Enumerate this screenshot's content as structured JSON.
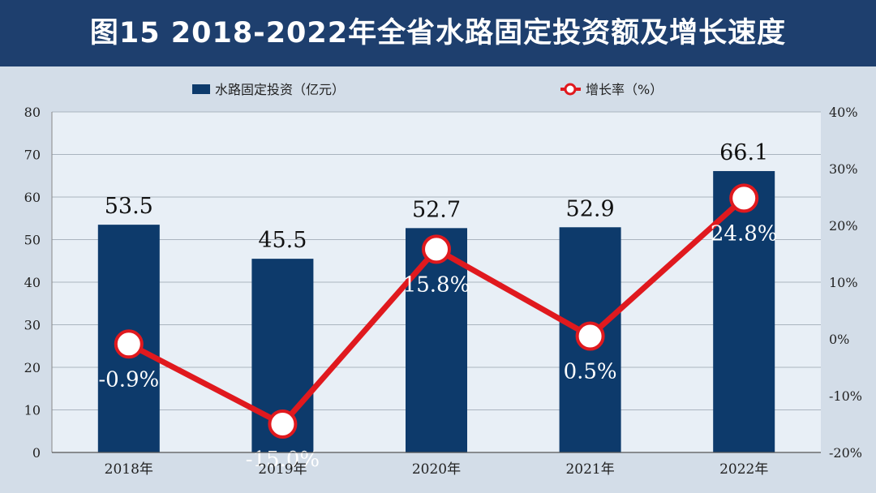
{
  "title": "图15  2018-2022年全省水路固定投资额及增长速度",
  "chart_data": {
    "type": "bar",
    "categories": [
      "2018年",
      "2019年",
      "2020年",
      "2021年",
      "2022年"
    ],
    "series": [
      {
        "name": "水路固定投资（亿元）",
        "type": "bar",
        "axis": "left",
        "values": [
          53.5,
          45.5,
          52.7,
          52.9,
          66.1
        ],
        "labels": [
          "53.5",
          "45.5",
          "52.7",
          "52.9",
          "66.1"
        ],
        "color": "#0d3a6b"
      },
      {
        "name": "增长率（%）",
        "type": "line",
        "axis": "right",
        "values": [
          -0.9,
          -15.0,
          15.8,
          0.5,
          24.8
        ],
        "labels": [
          "-0.9%",
          "-15.0%",
          "15.8%",
          "0.5%",
          "24.8%"
        ],
        "color": "#e0191e"
      }
    ],
    "y_left": {
      "min": 0,
      "max": 80,
      "ticks": [
        "0",
        "10",
        "20",
        "30",
        "40",
        "50",
        "60",
        "70",
        "80"
      ]
    },
    "y_right": {
      "min": -20,
      "max": 40,
      "ticks": [
        "-20%",
        "-10%",
        "0%",
        "10%",
        "20%",
        "30%",
        "40%"
      ]
    },
    "grid": true,
    "legend": "top-center"
  }
}
